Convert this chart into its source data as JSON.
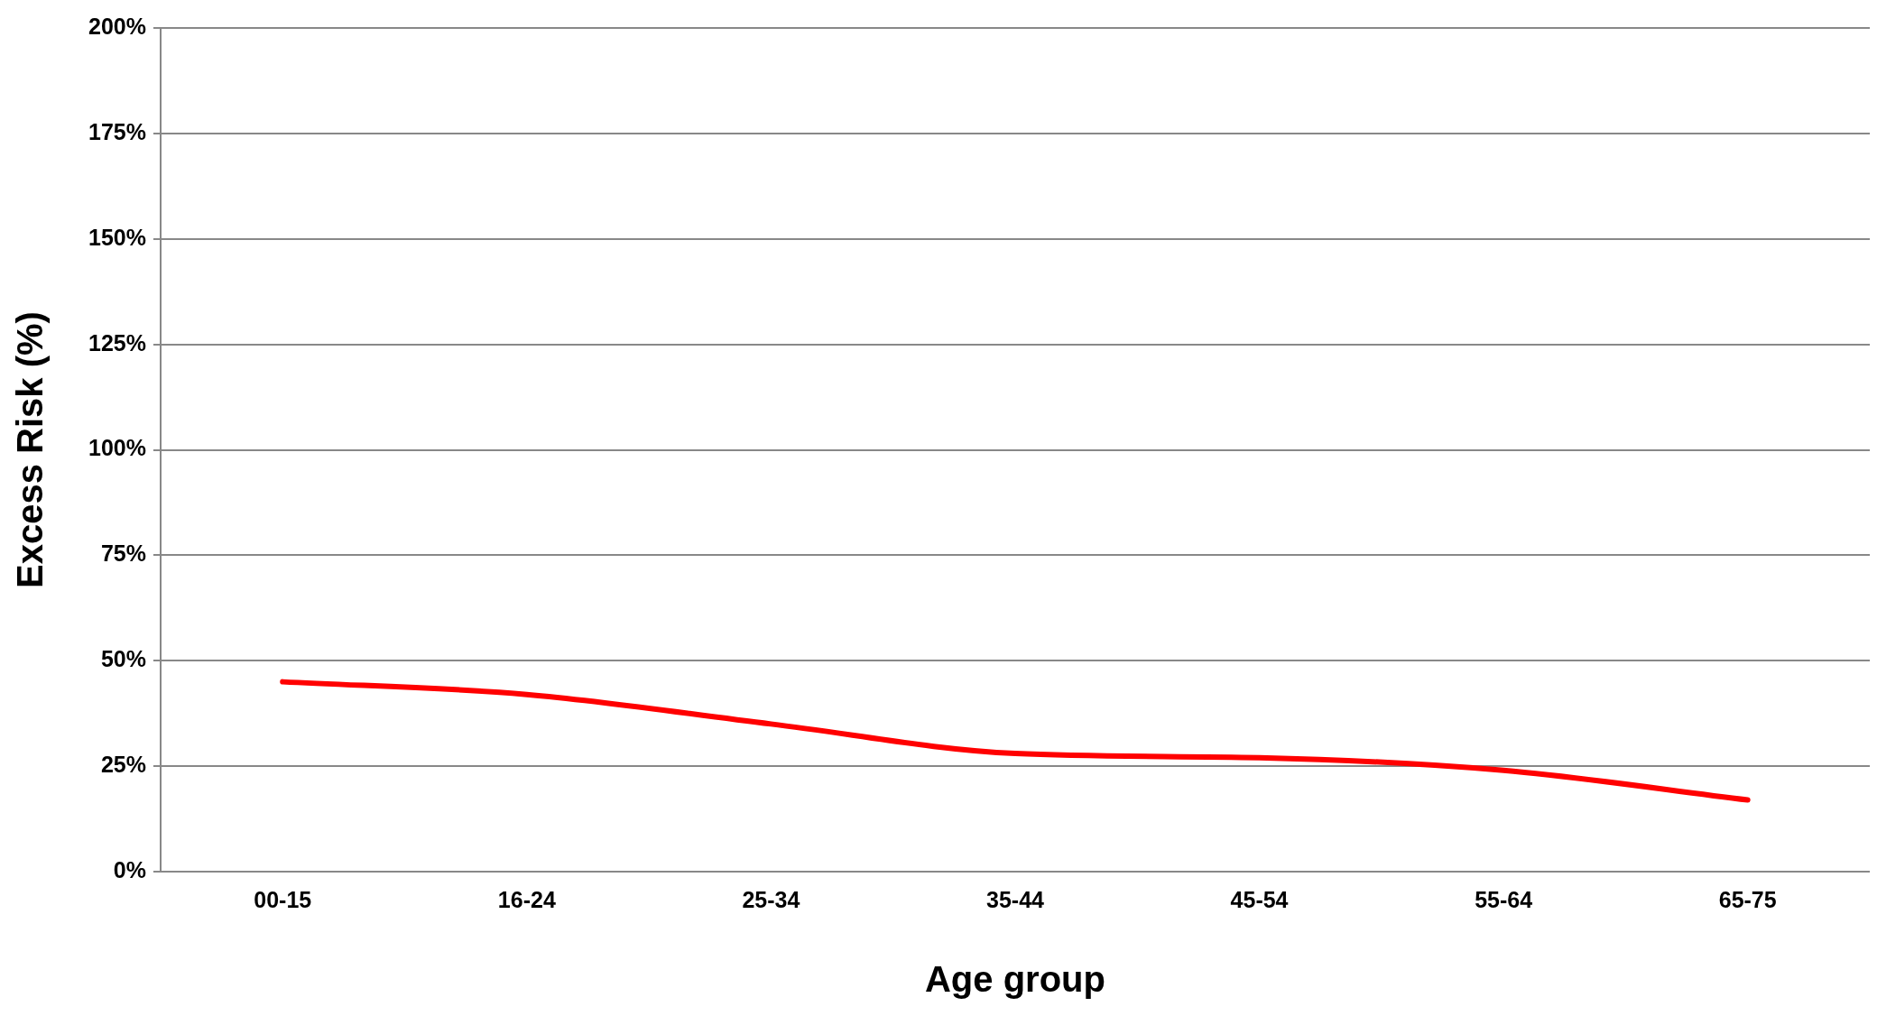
{
  "chart_data": {
    "type": "line",
    "xlabel": "Age group",
    "ylabel": "Excess Risk (%)",
    "categories": [
      "00-15",
      "16-24",
      "25-34",
      "35-44",
      "45-54",
      "55-64",
      "65-75"
    ],
    "series": [
      {
        "color": "#ff0000",
        "values": [
          45,
          42,
          35,
          28,
          27,
          24,
          17
        ]
      }
    ],
    "ylim": [
      0,
      200
    ],
    "yticks": [
      {
        "value": 0,
        "label": "0%"
      },
      {
        "value": 25,
        "label": "25%"
      },
      {
        "value": 50,
        "label": "50%"
      },
      {
        "value": 75,
        "label": "75%"
      },
      {
        "value": 100,
        "label": "100%"
      },
      {
        "value": 125,
        "label": "125%"
      },
      {
        "value": 150,
        "label": "150%"
      },
      {
        "value": 175,
        "label": "175%"
      },
      {
        "value": 200,
        "label": "200%"
      }
    ],
    "grid": "y",
    "legend": false,
    "marker": "none",
    "line_style": "solid"
  }
}
